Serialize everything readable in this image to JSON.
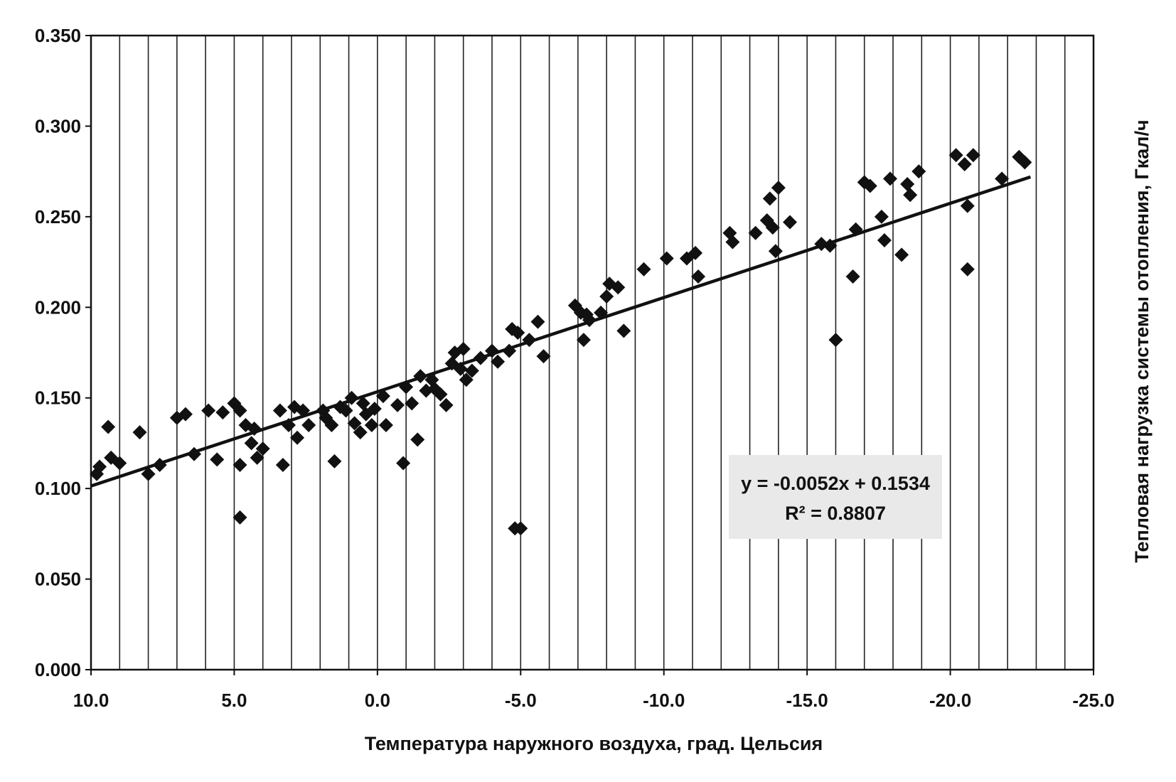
{
  "chart_data": {
    "type": "scatter",
    "xlabel": "Температура наружного воздуха, град. Цельсия",
    "ylabel": "Тепловая нагрузка системы отопления, Гкал/ч",
    "xlim": [
      10,
      -25
    ],
    "ylim": [
      0,
      0.35
    ],
    "x_axis_reversed": true,
    "grid": "vertical",
    "x_ticks": [
      "10.0",
      "5.0",
      "0.0",
      "-5.0",
      "-10.0",
      "-15.0",
      "-20.0",
      "-25.0"
    ],
    "y_ticks": [
      "0.000",
      "0.050",
      "0.100",
      "0.150",
      "0.200",
      "0.250",
      "0.300",
      "0.350"
    ],
    "marker_color": "#111111",
    "trendline": {
      "slope": -0.0052,
      "intercept": 0.1534,
      "x_range": [
        10,
        -22.8
      ],
      "equation_label": "y = -0.0052x + 0.1534",
      "r2_label": "R² = 0.8807"
    },
    "series": [
      {
        "points": [
          [
            9.8,
            0.108
          ],
          [
            9.7,
            0.112
          ],
          [
            9.4,
            0.134
          ],
          [
            9.3,
            0.117
          ],
          [
            9.0,
            0.114
          ],
          [
            8.3,
            0.131
          ],
          [
            8.0,
            0.108
          ],
          [
            7.6,
            0.113
          ],
          [
            7.0,
            0.139
          ],
          [
            6.7,
            0.141
          ],
          [
            6.4,
            0.119
          ],
          [
            5.9,
            0.143
          ],
          [
            5.6,
            0.116
          ],
          [
            5.4,
            0.142
          ],
          [
            5.0,
            0.147
          ],
          [
            4.8,
            0.143
          ],
          [
            4.8,
            0.113
          ],
          [
            4.8,
            0.084
          ],
          [
            4.6,
            0.135
          ],
          [
            4.4,
            0.125
          ],
          [
            4.3,
            0.133
          ],
          [
            4.2,
            0.117
          ],
          [
            4.0,
            0.122
          ],
          [
            3.4,
            0.143
          ],
          [
            3.3,
            0.113
          ],
          [
            3.1,
            0.135
          ],
          [
            2.9,
            0.145
          ],
          [
            2.8,
            0.128
          ],
          [
            2.6,
            0.143
          ],
          [
            2.4,
            0.135
          ],
          [
            1.9,
            0.143
          ],
          [
            1.8,
            0.139
          ],
          [
            1.6,
            0.135
          ],
          [
            1.5,
            0.115
          ],
          [
            1.3,
            0.145
          ],
          [
            1.1,
            0.143
          ],
          [
            0.9,
            0.15
          ],
          [
            0.8,
            0.136
          ],
          [
            0.6,
            0.131
          ],
          [
            0.5,
            0.147
          ],
          [
            0.4,
            0.141
          ],
          [
            0.2,
            0.135
          ],
          [
            0.1,
            0.144
          ],
          [
            -0.2,
            0.151
          ],
          [
            -0.3,
            0.135
          ],
          [
            -0.7,
            0.146
          ],
          [
            -0.9,
            0.114
          ],
          [
            -1.0,
            0.156
          ],
          [
            -1.2,
            0.147
          ],
          [
            -1.4,
            0.127
          ],
          [
            -1.5,
            0.162
          ],
          [
            -1.7,
            0.154
          ],
          [
            -1.9,
            0.16
          ],
          [
            -2.0,
            0.155
          ],
          [
            -2.2,
            0.152
          ],
          [
            -2.4,
            0.146
          ],
          [
            -2.6,
            0.169
          ],
          [
            -2.7,
            0.175
          ],
          [
            -2.9,
            0.166
          ],
          [
            -3.0,
            0.177
          ],
          [
            -3.1,
            0.16
          ],
          [
            -3.3,
            0.165
          ],
          [
            -3.6,
            0.172
          ],
          [
            -4.0,
            0.176
          ],
          [
            -4.2,
            0.17
          ],
          [
            -4.6,
            0.176
          ],
          [
            -4.7,
            0.188
          ],
          [
            -4.9,
            0.186
          ],
          [
            -4.8,
            0.078
          ],
          [
            -5.0,
            0.078
          ],
          [
            -5.3,
            0.182
          ],
          [
            -5.6,
            0.192
          ],
          [
            -5.8,
            0.173
          ],
          [
            -6.9,
            0.201
          ],
          [
            -7.1,
            0.197
          ],
          [
            -7.2,
            0.182
          ],
          [
            -7.3,
            0.196
          ],
          [
            -7.4,
            0.193
          ],
          [
            -7.8,
            0.197
          ],
          [
            -8.0,
            0.206
          ],
          [
            -8.1,
            0.213
          ],
          [
            -8.4,
            0.211
          ],
          [
            -8.6,
            0.187
          ],
          [
            -9.3,
            0.221
          ],
          [
            -10.1,
            0.227
          ],
          [
            -10.8,
            0.227
          ],
          [
            -11.1,
            0.23
          ],
          [
            -11.2,
            0.217
          ],
          [
            -12.3,
            0.241
          ],
          [
            -12.4,
            0.236
          ],
          [
            -13.2,
            0.241
          ],
          [
            -13.6,
            0.248
          ],
          [
            -13.7,
            0.26
          ],
          [
            -13.8,
            0.244
          ],
          [
            -13.9,
            0.231
          ],
          [
            -14.0,
            0.266
          ],
          [
            -14.4,
            0.247
          ],
          [
            -15.5,
            0.235
          ],
          [
            -15.8,
            0.234
          ],
          [
            -16.0,
            0.182
          ],
          [
            -16.6,
            0.217
          ],
          [
            -16.7,
            0.243
          ],
          [
            -17.0,
            0.269
          ],
          [
            -17.2,
            0.267
          ],
          [
            -17.6,
            0.25
          ],
          [
            -17.7,
            0.237
          ],
          [
            -17.9,
            0.271
          ],
          [
            -18.3,
            0.229
          ],
          [
            -18.5,
            0.268
          ],
          [
            -18.6,
            0.262
          ],
          [
            -18.9,
            0.275
          ],
          [
            -20.2,
            0.284
          ],
          [
            -20.5,
            0.279
          ],
          [
            -20.6,
            0.256
          ],
          [
            -20.6,
            0.221
          ],
          [
            -20.8,
            0.284
          ],
          [
            -21.8,
            0.271
          ],
          [
            -22.4,
            0.283
          ],
          [
            -22.6,
            0.28
          ]
        ]
      }
    ]
  }
}
